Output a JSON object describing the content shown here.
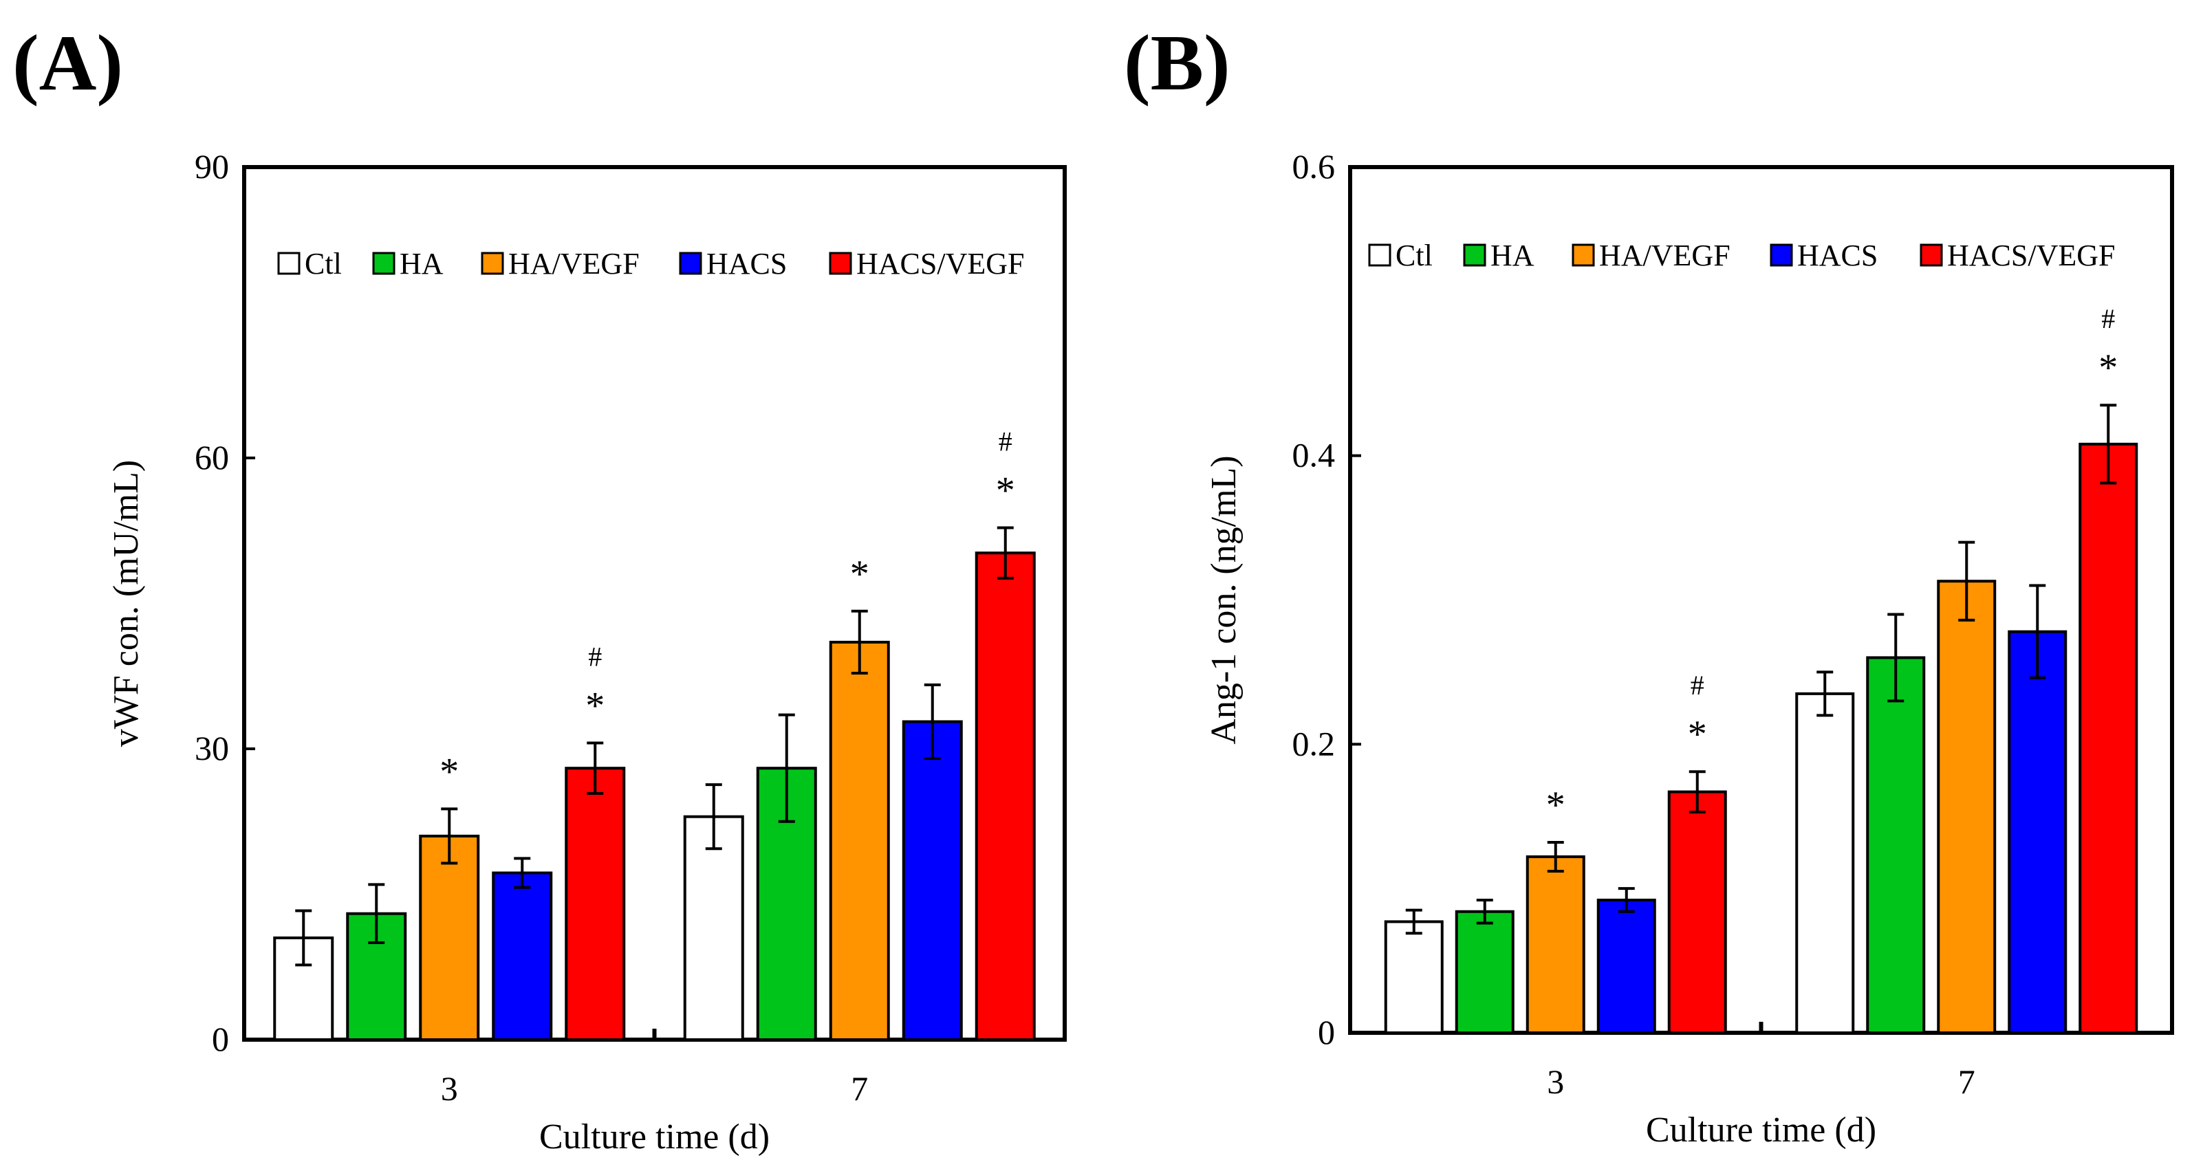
{
  "chart_data": [
    {
      "panel_label": "(A)",
      "type": "bar",
      "xlabel": "Culture time (d)",
      "ylabel": "vWF con. (mU/mL)",
      "ylim": [
        0,
        90
      ],
      "yticks": [
        "0",
        "30",
        "60",
        "90"
      ],
      "categories": [
        "3",
        "7"
      ],
      "series": [
        {
          "name": "Ctl",
          "color": "#ffffff",
          "values": [
            10.5,
            23.0
          ],
          "errors": [
            2.8,
            3.3
          ]
        },
        {
          "name": "HA",
          "color": "#00c41a",
          "values": [
            13.0,
            28.0
          ],
          "errors": [
            3.0,
            5.5
          ]
        },
        {
          "name": "HA/VEGF",
          "color": "#ff9300",
          "values": [
            21.0,
            41.0
          ],
          "errors": [
            2.8,
            3.2
          ]
        },
        {
          "name": "HACS",
          "color": "#0000ff",
          "values": [
            17.2,
            32.8
          ],
          "errors": [
            1.5,
            3.8
          ]
        },
        {
          "name": "HACS/VEGF",
          "color": "#ff0000",
          "values": [
            28.0,
            50.2
          ],
          "errors": [
            2.6,
            2.6
          ]
        }
      ],
      "annotations": [
        {
          "category": "3",
          "series": "HA/VEGF",
          "marks": [
            "*"
          ]
        },
        {
          "category": "3",
          "series": "HACS/VEGF",
          "marks": [
            "*",
            "#"
          ]
        },
        {
          "category": "7",
          "series": "HA/VEGF",
          "marks": [
            "*"
          ]
        },
        {
          "category": "7",
          "series": "HACS/VEGF",
          "marks": [
            "*",
            "#"
          ]
        }
      ]
    },
    {
      "panel_label": "(B)",
      "type": "bar",
      "xlabel": "Culture time (d)",
      "ylabel": "Ang-1 con. (ng/mL)",
      "ylim": [
        0,
        0.6
      ],
      "yticks": [
        "0",
        "0.2",
        "0.4",
        "0.6"
      ],
      "categories": [
        "3",
        "7"
      ],
      "series": [
        {
          "name": "Ctl",
          "color": "#ffffff",
          "values": [
            0.077,
            0.235
          ],
          "errors": [
            0.008,
            0.015
          ]
        },
        {
          "name": "HA",
          "color": "#00c41a",
          "values": [
            0.084,
            0.26
          ],
          "errors": [
            0.008,
            0.03
          ]
        },
        {
          "name": "HA/VEGF",
          "color": "#ff9300",
          "values": [
            0.122,
            0.313
          ],
          "errors": [
            0.01,
            0.027
          ]
        },
        {
          "name": "HACS",
          "color": "#0000ff",
          "values": [
            0.092,
            0.278
          ],
          "errors": [
            0.008,
            0.032
          ]
        },
        {
          "name": "HACS/VEGF",
          "color": "#ff0000",
          "values": [
            0.167,
            0.408
          ],
          "errors": [
            0.014,
            0.027
          ]
        }
      ],
      "annotations": [
        {
          "category": "3",
          "series": "HA/VEGF",
          "marks": [
            "*"
          ]
        },
        {
          "category": "3",
          "series": "HACS/VEGF",
          "marks": [
            "*",
            "#"
          ]
        },
        {
          "category": "7",
          "series": "HACS/VEGF",
          "marks": [
            "*",
            "#"
          ]
        }
      ]
    }
  ]
}
